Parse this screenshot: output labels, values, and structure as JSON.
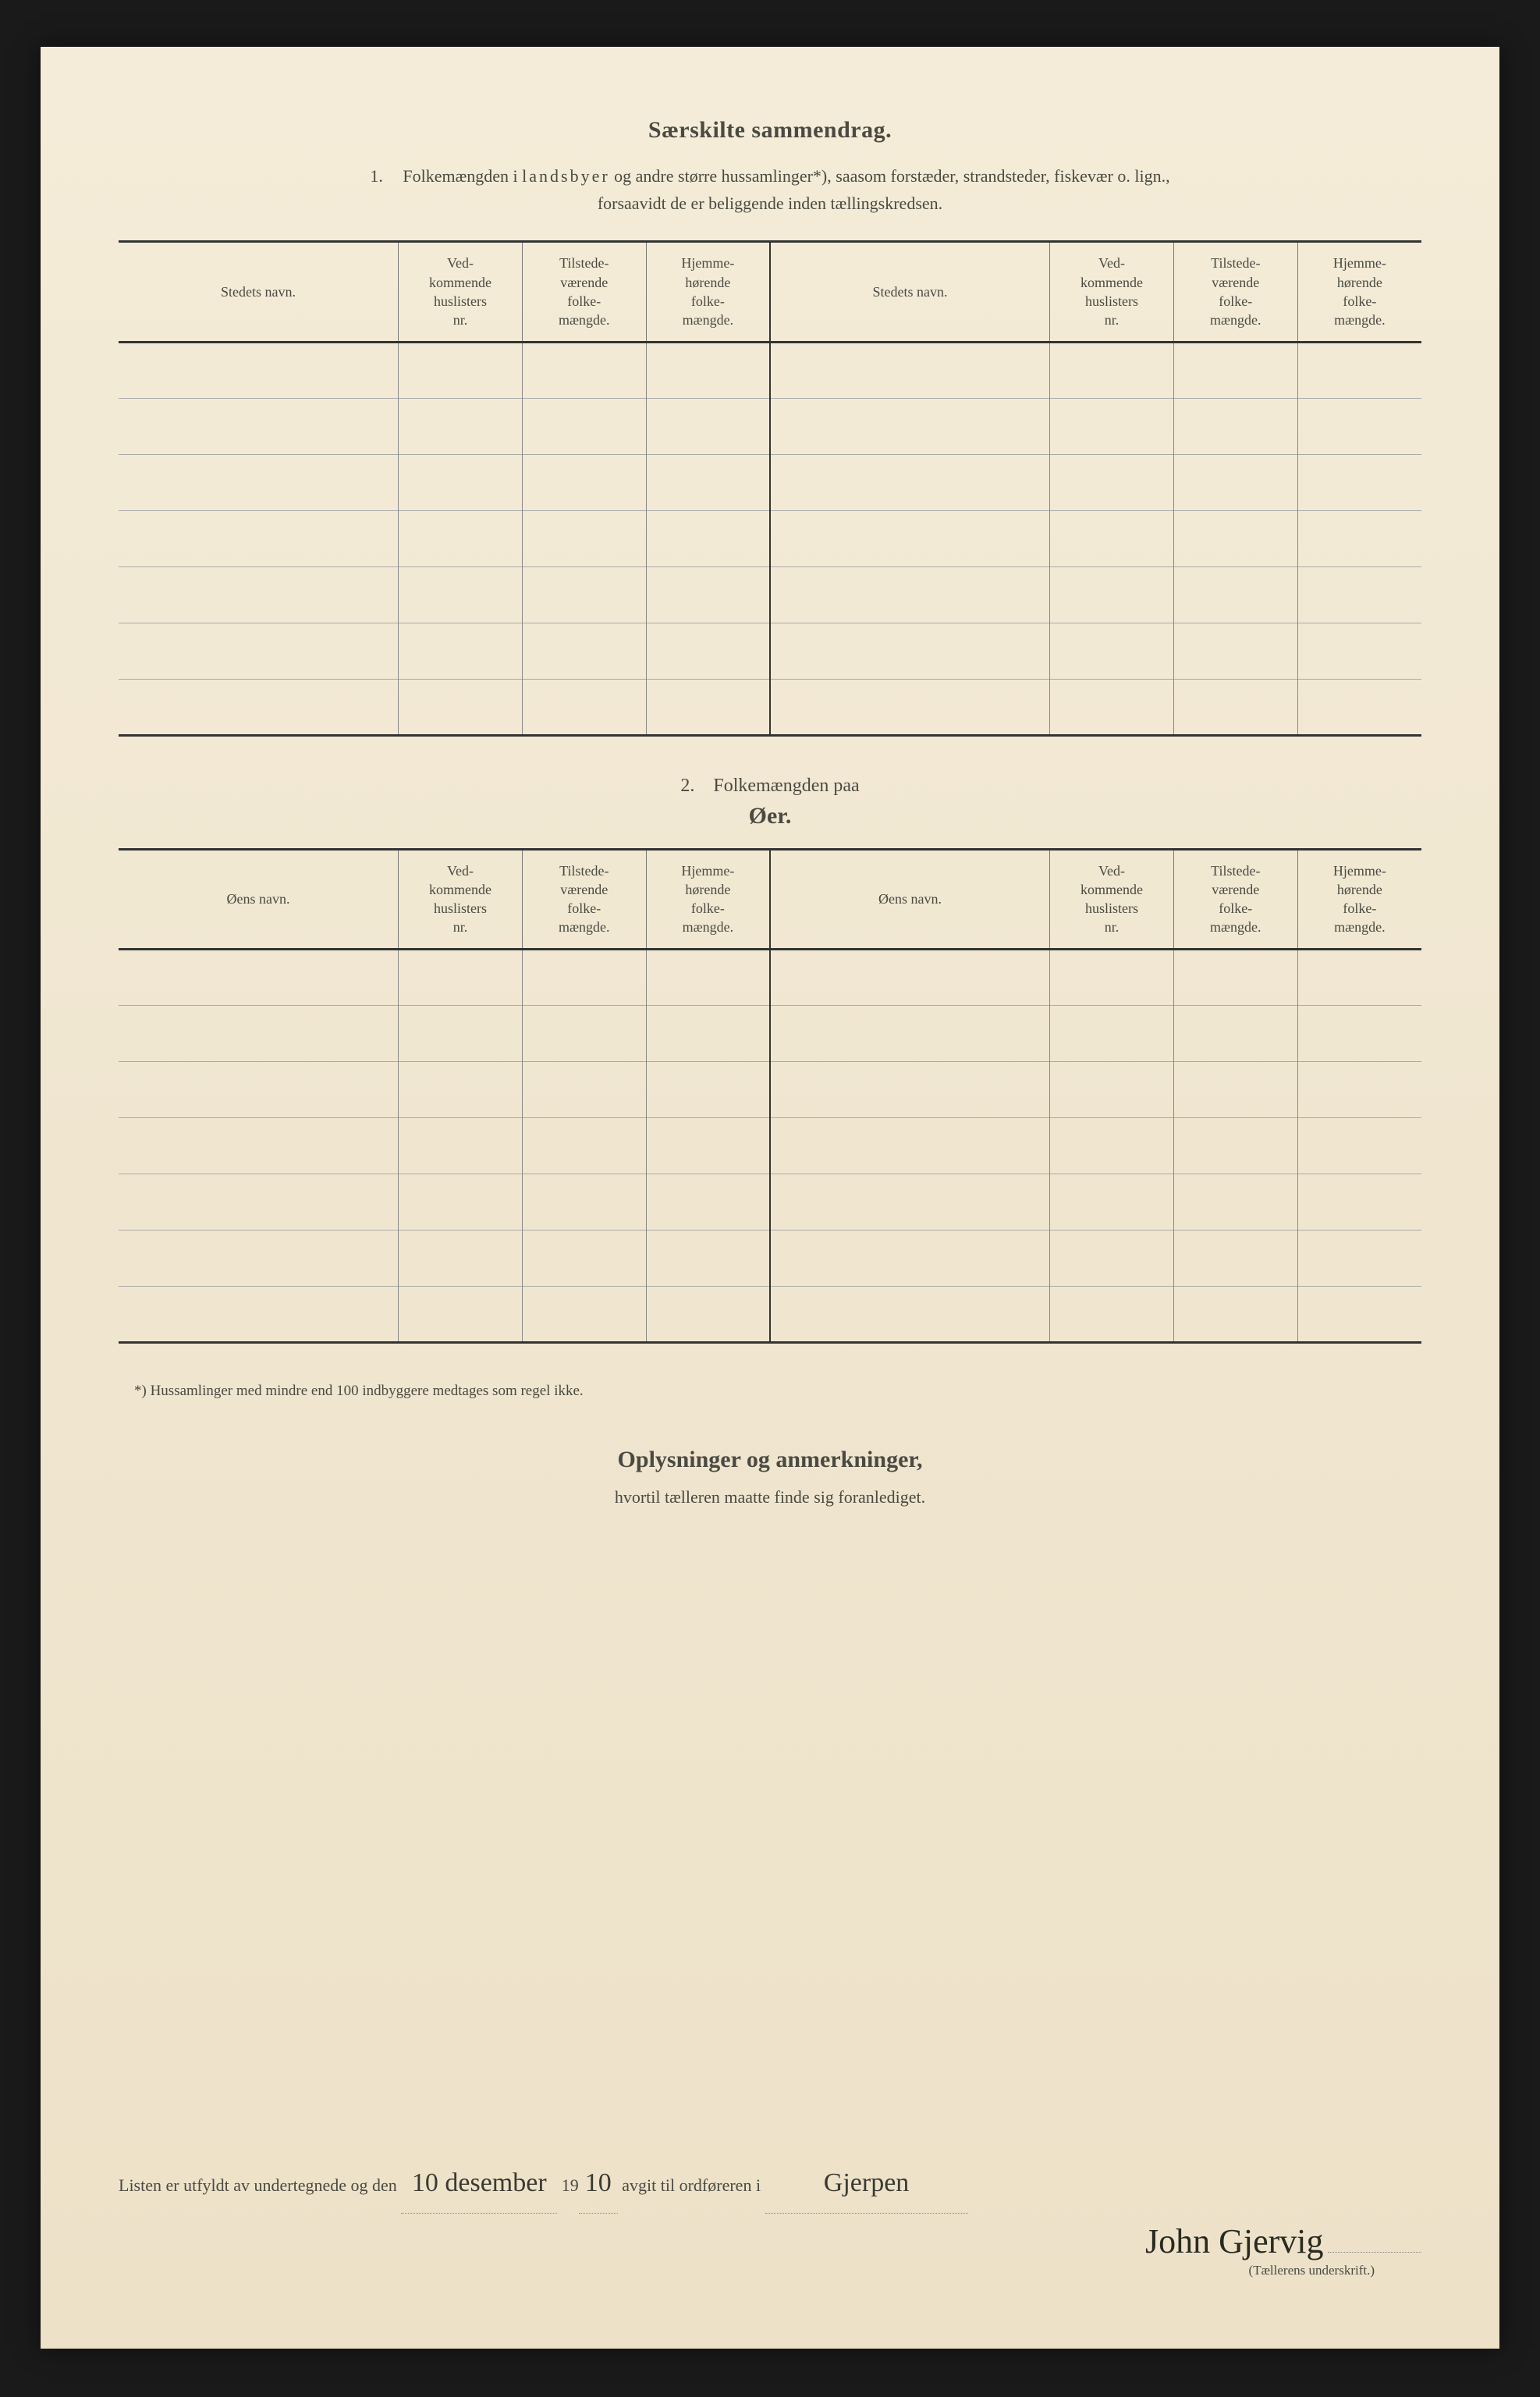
{
  "section1": {
    "title": "Særskilte sammendrag.",
    "intro_number": "1.",
    "intro_line1_a": "Folkemængden i ",
    "intro_line1_spaced": "landsbyer",
    "intro_line1_b": " og andre større hussamlinger*), saasom forstæder, strandsteder, fiskevær o. lign.,",
    "intro_line2": "forsaavidt de er beliggende inden tællingskredsen."
  },
  "table_headers": {
    "col1": "Stedets navn.",
    "col2": "Ved-\nkommende\nhuslisters\nnr.",
    "col3": "Tilstede-\nværende\nfolke-\nmængde.",
    "col4": "Hjemme-\nhørende\nfolke-\nmængde.",
    "col5": "Stedets navn.",
    "col6": "Ved-\nkommende\nhuslisters\nnr.",
    "col7": "Tilstede-\nværende\nfolke-\nmængde.",
    "col8": "Hjemme-\nhørende\nfolke-\nmængde."
  },
  "section2": {
    "lead_number": "2.",
    "lead_text": "Folkemængden paa",
    "title": "Øer."
  },
  "table2_headers": {
    "col1": "Øens navn.",
    "col5": "Øens navn."
  },
  "footnote": "*) Hussamlinger med mindre end 100 indbyggere medtages som regel ikke.",
  "oplysninger": {
    "title": "Oplysninger og anmerkninger,",
    "sub": "hvortil tælleren maatte finde sig foranlediget."
  },
  "signature": {
    "line_a": "Listen er utfyldt av undertegnede og den",
    "date_hand": "10 desember",
    "year_prefix": "19",
    "year_hand": "10",
    "line_b": "avgit til ordføreren i",
    "place_hand": "Gjerpen",
    "name_hand": "John Gjervig",
    "caption": "(Tællerens underskrift.)"
  },
  "rows": 7
}
